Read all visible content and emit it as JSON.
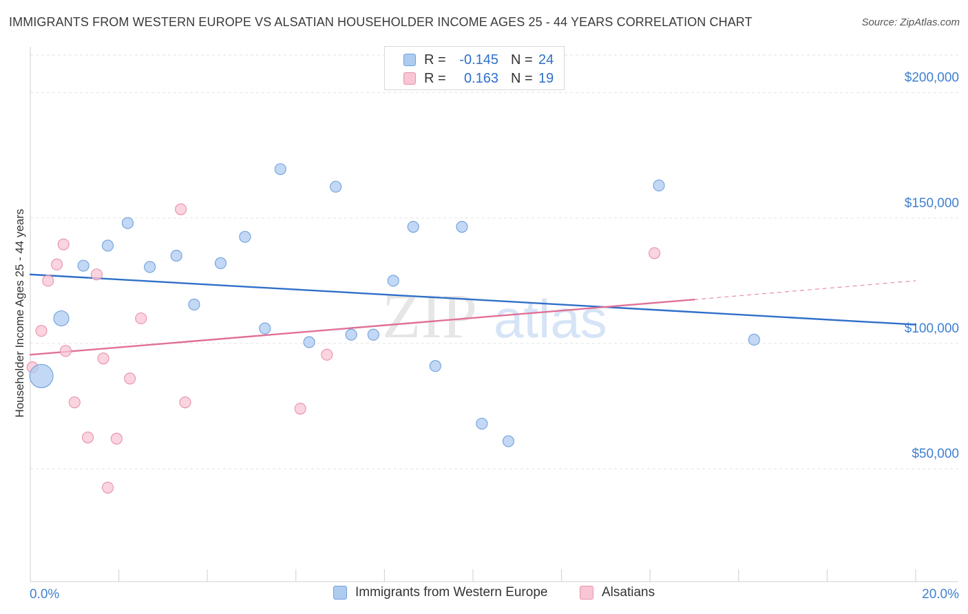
{
  "title": "IMMIGRANTS FROM WESTERN EUROPE VS ALSATIAN HOUSEHOLDER INCOME AGES 25 - 44 YEARS CORRELATION CHART",
  "source": "Source: ZipAtlas.com",
  "watermark": {
    "zip": "ZIP",
    "atlas": "atlas"
  },
  "legend_top": [
    {
      "r_label": "R =",
      "r_value": "-0.145",
      "n_label": "N =",
      "n_value": "24",
      "color": "#aecbf0",
      "border": "#6f9fdd"
    },
    {
      "r_label": "R =",
      "r_value": "0.163",
      "n_label": "N =",
      "n_value": "19",
      "color": "#f8c6d4",
      "border": "#e890ab"
    }
  ],
  "chart_data": {
    "type": "scatter",
    "title": "IMMIGRANTS FROM WESTERN EUROPE VS ALSATIAN HOUSEHOLDER INCOME AGES 25 - 44 YEARS CORRELATION CHART",
    "xlabel": "",
    "ylabel": "Householder Income Ages 25 - 44 years",
    "xlim": [
      0,
      20
    ],
    "ylim": [
      5000,
      215000
    ],
    "x_tick_labels": [
      {
        "x": 0,
        "label": "0.0%"
      },
      {
        "x": 20,
        "label": "20.0%"
      }
    ],
    "y_ticks": [
      {
        "y": 50000,
        "label": "$50,000"
      },
      {
        "y": 100000,
        "label": "$100,000"
      },
      {
        "y": 150000,
        "label": "$150,000"
      },
      {
        "y": 200000,
        "label": "$200,000"
      }
    ],
    "grid": true,
    "legend_position": "bottom",
    "series": [
      {
        "name": "Immigrants from Western Europe",
        "color": "#aecbf0",
        "stroke": "#6f9fdd",
        "trend_color": "#2f6fc9",
        "trend": {
          "x0": 0,
          "y0": 127500,
          "x1": 20,
          "y1": 107500
        },
        "points": [
          {
            "x": 0.25,
            "y": 87000,
            "size": "large"
          },
          {
            "x": 0.7,
            "y": 110000,
            "size": "medium"
          },
          {
            "x": 1.2,
            "y": 131000
          },
          {
            "x": 1.75,
            "y": 139000
          },
          {
            "x": 2.2,
            "y": 148000
          },
          {
            "x": 2.7,
            "y": 130500
          },
          {
            "x": 3.3,
            "y": 135000
          },
          {
            "x": 3.7,
            "y": 115500
          },
          {
            "x": 4.3,
            "y": 132000
          },
          {
            "x": 4.85,
            "y": 142500
          },
          {
            "x": 5.3,
            "y": 106000
          },
          {
            "x": 5.65,
            "y": 169500
          },
          {
            "x": 6.3,
            "y": 100500
          },
          {
            "x": 6.9,
            "y": 162500
          },
          {
            "x": 7.25,
            "y": 103500
          },
          {
            "x": 7.75,
            "y": 103500
          },
          {
            "x": 8.2,
            "y": 125000
          },
          {
            "x": 8.65,
            "y": 146500
          },
          {
            "x": 9.15,
            "y": 91000
          },
          {
            "x": 9.75,
            "y": 146500
          },
          {
            "x": 10.2,
            "y": 68000
          },
          {
            "x": 10.8,
            "y": 61000
          },
          {
            "x": 14.2,
            "y": 163000
          },
          {
            "x": 16.35,
            "y": 101500
          }
        ]
      },
      {
        "name": "Alsatians",
        "color": "#f8c6d4",
        "stroke": "#e890ab",
        "trend_color": "#e07095",
        "trend": {
          "x0": 0,
          "y0": 95500,
          "x1": 15,
          "y1": 117500
        },
        "trend_extension": {
          "x0": 15,
          "y0": 117500,
          "x1": 20,
          "y1": 125000
        },
        "points": [
          {
            "x": 0.05,
            "y": 90500
          },
          {
            "x": 0.25,
            "y": 105000
          },
          {
            "x": 0.4,
            "y": 125000
          },
          {
            "x": 0.6,
            "y": 131500
          },
          {
            "x": 0.75,
            "y": 139500
          },
          {
            "x": 0.8,
            "y": 97000
          },
          {
            "x": 1.0,
            "y": 76500
          },
          {
            "x": 1.3,
            "y": 62500
          },
          {
            "x": 1.5,
            "y": 127500
          },
          {
            "x": 1.65,
            "y": 94000
          },
          {
            "x": 1.75,
            "y": 42500
          },
          {
            "x": 1.95,
            "y": 62000
          },
          {
            "x": 2.25,
            "y": 86000
          },
          {
            "x": 2.5,
            "y": 110000
          },
          {
            "x": 3.4,
            "y": 153500
          },
          {
            "x": 3.5,
            "y": 76500
          },
          {
            "x": 6.1,
            "y": 74000
          },
          {
            "x": 6.7,
            "y": 95500
          },
          {
            "x": 14.1,
            "y": 136000
          }
        ]
      }
    ]
  }
}
